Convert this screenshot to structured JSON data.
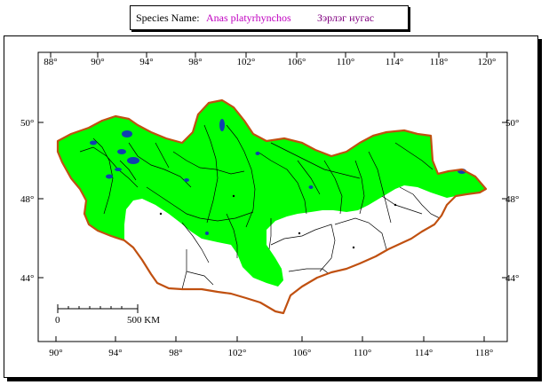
{
  "header": {
    "label": "Species Name:",
    "scientific_name": "Anas platyrhynchos",
    "local_name": "Зэрлэг нугас"
  },
  "map": {
    "top_lon_labels": [
      "88°",
      "90°",
      "94°",
      "98°",
      "102°",
      "106°",
      "110°",
      "114°",
      "118°",
      "120°"
    ],
    "bottom_lon_labels": [
      "90°",
      "94°",
      "98°",
      "102°",
      "106°",
      "110°",
      "114°",
      "118°"
    ],
    "left_lat_labels": [
      "50°",
      "48°",
      "44°"
    ],
    "right_lat_labels": [
      "50°",
      "48°",
      "44°"
    ],
    "scale_bar": {
      "start_label": "0",
      "end_label": "500 KM"
    },
    "colors": {
      "range": "#00ff00",
      "border": "#c05010",
      "lakes": "#1040b0",
      "rivers": "#000000"
    }
  }
}
